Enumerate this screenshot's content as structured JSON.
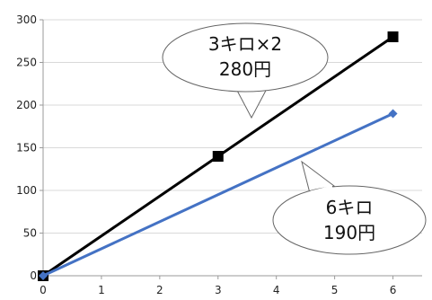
{
  "chart_data": {
    "type": "line",
    "title": "",
    "xlabel": "",
    "ylabel": "",
    "xlim": [
      0,
      6.5
    ],
    "ylim": [
      0,
      300
    ],
    "x_ticks": [
      "0",
      "1",
      "2",
      "3",
      "4",
      "5",
      "6"
    ],
    "y_ticks": [
      "0",
      "50",
      "100",
      "150",
      "200",
      "250",
      "300"
    ],
    "grid": "horizontal",
    "legend": "none",
    "series": [
      {
        "x": [
          0,
          3,
          6
        ],
        "y": [
          0,
          140,
          280
        ],
        "color": "#000000",
        "marker": "square"
      },
      {
        "x": [
          0,
          6
        ],
        "y": [
          0,
          190
        ],
        "color": "#4472c4",
        "marker": "diamond"
      }
    ],
    "annotations": [
      {
        "lines": [
          "3キロ×2",
          "280円"
        ]
      },
      {
        "lines": [
          "6キロ",
          "190円"
        ]
      }
    ]
  }
}
